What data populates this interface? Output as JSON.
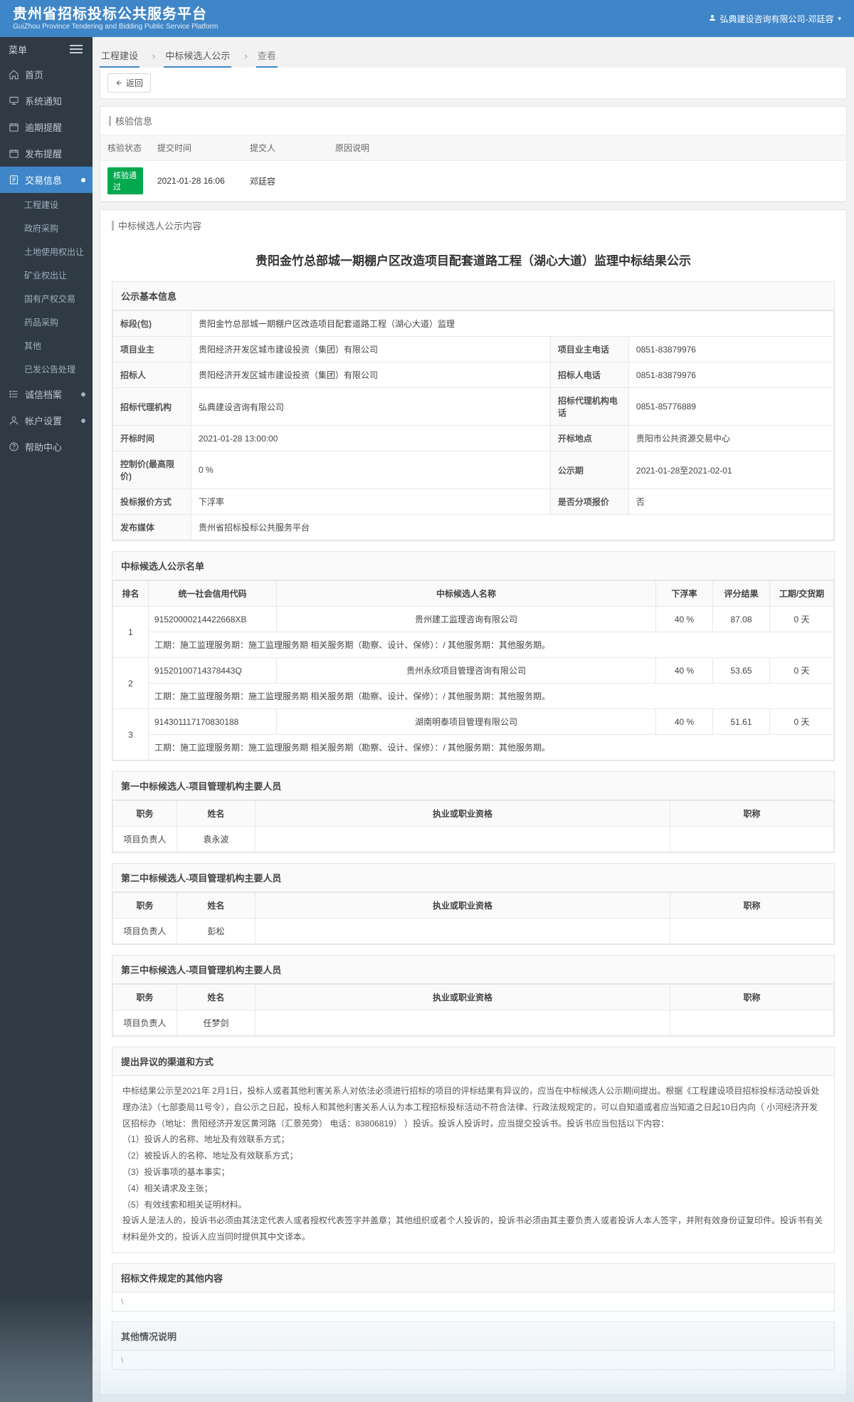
{
  "header": {
    "title_cn": "贵州省招标投标公共服务平台",
    "title_en": "GuiZhou Province Tendering and Bidding Public Service Platform",
    "user": "弘典建设咨询有限公司-邓廷容"
  },
  "menubar": {
    "label": "菜单"
  },
  "sidebar": {
    "items": [
      {
        "label": "首页",
        "icon": "home"
      },
      {
        "label": "系统通知",
        "icon": "monitor"
      },
      {
        "label": "逾期提醒",
        "icon": "calendar"
      },
      {
        "label": "发布提醒",
        "icon": "calendar"
      },
      {
        "label": "交易信息",
        "icon": "doc",
        "active": true,
        "expandable": true
      },
      {
        "label": "诚信档案",
        "icon": "list",
        "expandable": true
      },
      {
        "label": "帐户设置",
        "icon": "user",
        "expandable": true
      },
      {
        "label": "帮助中心",
        "icon": "help"
      }
    ],
    "sub": [
      "工程建设",
      "政府采购",
      "土地使用权出让",
      "矿业权出让",
      "国有产权交易",
      "药品采购",
      "其他",
      "已发公告处理"
    ]
  },
  "crumbs": {
    "a": "工程建设",
    "b": "中标候选人公示",
    "c": "查看"
  },
  "back_label": "返回",
  "verify": {
    "title": "核验信息",
    "headers": {
      "status": "核验状态",
      "time": "提交时间",
      "person": "提交人",
      "reason": "原因说明"
    },
    "row": {
      "status": "核验通过",
      "time": "2021-01-28 16:06",
      "person": "邓廷容",
      "reason": ""
    }
  },
  "content_title": "中标候选人公示内容",
  "page_title": "贵阳金竹总部城一期棚户区改造项目配套道路工程（湖心大道）监理中标结果公示",
  "basic": {
    "title": "公示基本信息",
    "rows": [
      [
        {
          "k": "标段(包)",
          "v": "贵阳金竹总部城一期棚户区改造项目配套道路工程（湖心大道）监理",
          "span": 3
        }
      ],
      [
        {
          "k": "项目业主",
          "v": "贵阳经济开发区城市建设投资（集团）有限公司"
        },
        {
          "k": "项目业主电话",
          "v": "0851-83879976"
        }
      ],
      [
        {
          "k": "招标人",
          "v": "贵阳经济开发区城市建设投资（集团）有限公司"
        },
        {
          "k": "招标人电话",
          "v": "0851-83879976"
        }
      ],
      [
        {
          "k": "招标代理机构",
          "v": "弘典建设咨询有限公司"
        },
        {
          "k": "招标代理机构电话",
          "v": "0851-85776889"
        }
      ],
      [
        {
          "k": "开标时间",
          "v": "2021-01-28 13:00:00"
        },
        {
          "k": "开标地点",
          "v": "贵阳市公共资源交易中心"
        }
      ],
      [
        {
          "k": "控制价(最高限价)",
          "v": "0 %"
        },
        {
          "k": "公示期",
          "v": "2021-01-28至2021-02-01"
        }
      ],
      [
        {
          "k": "投标报价方式",
          "v": "下浮率"
        },
        {
          "k": "是否分项报价",
          "v": "否"
        }
      ],
      [
        {
          "k": "发布媒体",
          "v": "贵州省招标投标公共服务平台",
          "span": 3
        }
      ]
    ]
  },
  "candidates": {
    "title": "中标候选人公示名单",
    "headers": {
      "rank": "排名",
      "code": "统一社会信用代码",
      "name": "中标候选人名称",
      "rate": "下浮率",
      "score": "评分结果",
      "duration": "工期/交货期"
    },
    "rows": [
      {
        "rank": "1",
        "code": "91520000214422668XB",
        "name": "贵州建工监理咨询有限公司",
        "rate": "40 %",
        "score": "87.08",
        "duration": "0 天",
        "note": "工期：施工监理服务期：施工监理服务期 相关服务期（勘察、设计、保修）：/ 其他服务期：其他服务期。"
      },
      {
        "rank": "2",
        "code": "91520100714378443Q",
        "name": "贵州永欣项目管理咨询有限公司",
        "rate": "40 %",
        "score": "53.65",
        "duration": "0 天",
        "note": "工期：施工监理服务期：施工监理服务期 相关服务期（勘察、设计、保修）：/ 其他服务期：其他服务期。"
      },
      {
        "rank": "3",
        "code": "914301117170830188",
        "name": "湖南明泰项目管理有限公司",
        "rate": "40 %",
        "score": "51.61",
        "duration": "0 天",
        "note": "工期：施工监理服务期：施工监理服务期 相关服务期（勘察、设计、保修）：/ 其他服务期：其他服务期。"
      }
    ]
  },
  "personnel": [
    {
      "title": "第一中标候选人-项目管理机构主要人员",
      "headers": {
        "duty": "职务",
        "name": "姓名",
        "qual": "执业或职业资格",
        "post": "职称"
      },
      "rows": [
        {
          "duty": "项目负责人",
          "name": "袁永波",
          "qual": "",
          "post": ""
        }
      ]
    },
    {
      "title": "第二中标候选人-项目管理机构主要人员",
      "headers": {
        "duty": "职务",
        "name": "姓名",
        "qual": "执业或职业资格",
        "post": "职称"
      },
      "rows": [
        {
          "duty": "项目负责人",
          "name": "彭松",
          "qual": "",
          "post": ""
        }
      ]
    },
    {
      "title": "第三中标候选人-项目管理机构主要人员",
      "headers": {
        "duty": "职务",
        "name": "姓名",
        "qual": "执业或职业资格",
        "post": "职称"
      },
      "rows": [
        {
          "duty": "项目负责人",
          "name": "任梦剑",
          "qual": "",
          "post": ""
        }
      ]
    }
  ],
  "objection": {
    "title": "提出异议的渠道和方式",
    "body": "中标结果公示至2021年 2月1日，投标人或者其他利害关系人对依法必须进行招标的项目的评标结果有异议的，应当在中标候选人公示期间提出。根据《工程建设项目招标投标活动投诉处理办法》（七部委局11号令），自公示之日起，投标人和其他利害关系人认为本工程招标投标活动不符合法律、行政法规规定的，可以自知道或者应当知道之日起10日内向（ 小河经济开发区招标办（地址：贵阳经济开发区黄河路（汇景苑旁） 电话：83806819） ）投诉。投诉人投诉时，应当提交投诉书。投诉书应当包括以下内容：\n（1）投诉人的名称、地址及有效联系方式；\n（2）被投诉人的名称、地址及有效联系方式；\n（3）投诉事项的基本事实；\n（4）相关请求及主张；\n（5）有效线索和相关证明材料。\n投诉人是法人的，投诉书必须由其法定代表人或者授权代表签字并盖章；其他组织或者个人投诉的，投诉书必须由其主要负责人或者投诉人本人签字，并附有效身份证复印件。投诉书有关材料是外文的，投诉人应当同时提供其中文译本。"
  },
  "other1": {
    "title": "招标文件规定的其他内容",
    "body": "\\"
  },
  "other2": {
    "title": "其他情况说明",
    "body": "\\"
  }
}
